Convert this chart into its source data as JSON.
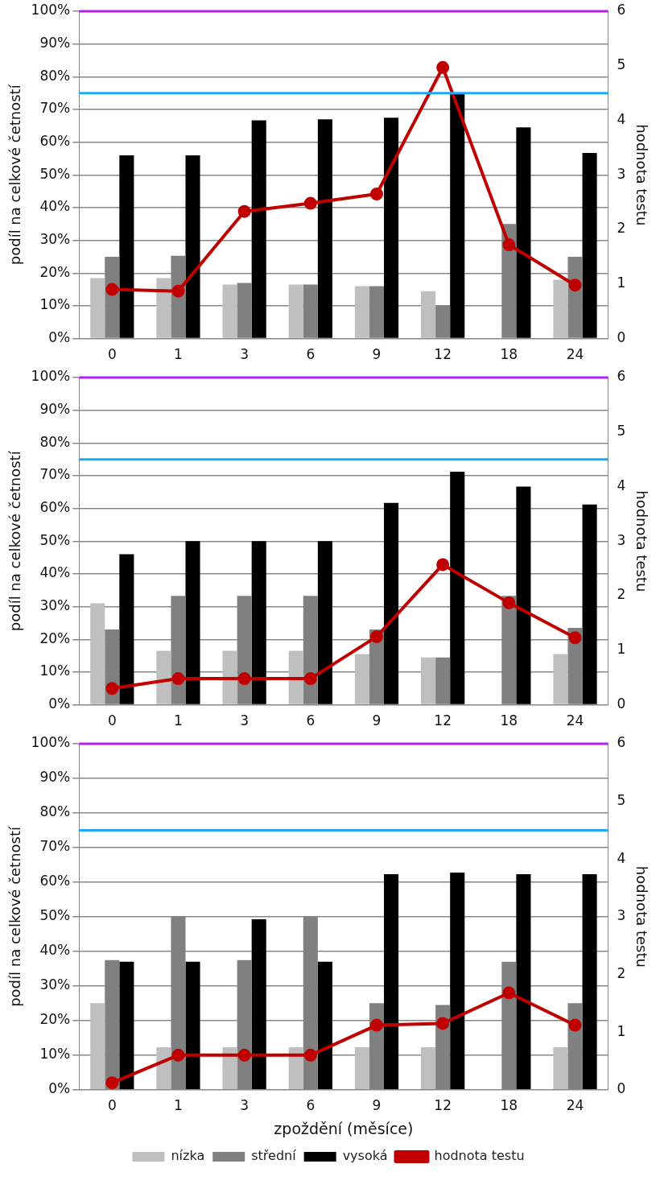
{
  "chart_data": [
    {
      "type": "bar",
      "ylabel": "podíl na celkové četností",
      "y2label": "hodnota testu",
      "categories": [
        "0",
        "1",
        "3",
        "6",
        "9",
        "12",
        "18",
        "24"
      ],
      "series": [
        {
          "color": "#bfbfbf",
          "values": [
            18.5,
            18.5,
            16.5,
            16.5,
            16,
            14.5,
            null,
            18
          ]
        },
        {
          "color": "#808080",
          "values": [
            25,
            25.3,
            17,
            16.5,
            16,
            10,
            35,
            25
          ]
        },
        {
          "color": "#000000",
          "values": [
            56,
            56,
            66.7,
            67,
            67.5,
            75,
            64.5,
            56.7
          ]
        },
        {
          "type": "line",
          "axis": "y2",
          "color": "#c00000",
          "marker": "circle",
          "values": [
            0.9,
            0.87,
            2.33,
            2.48,
            2.65,
            4.97,
            1.72,
            0.98
          ]
        }
      ],
      "ylim": [
        0,
        100
      ],
      "yticks": [
        {
          "value": 0,
          "label": "0%"
        },
        {
          "value": 10,
          "label": "10%"
        },
        {
          "value": 20,
          "label": "20%"
        },
        {
          "value": 30,
          "label": "30%"
        },
        {
          "value": 40,
          "label": "40%"
        },
        {
          "value": 50,
          "label": "50%"
        },
        {
          "value": 60,
          "label": "60%"
        },
        {
          "value": 70,
          "label": "70%"
        },
        {
          "value": 80,
          "label": "80%"
        },
        {
          "value": 90,
          "label": "90%"
        },
        {
          "value": 100,
          "label": "100%"
        }
      ],
      "y2lim": [
        0,
        6
      ],
      "y2ticks": [
        0,
        1,
        2,
        3,
        4,
        5,
        6
      ],
      "ref_lines": [
        {
          "axis": "y2",
          "value": 6,
          "color": "#b31ff0"
        },
        {
          "axis": "y2",
          "value": 4.5,
          "color": "#1ea7f5"
        }
      ],
      "grid": "y",
      "legend": false
    },
    {
      "type": "bar",
      "ylabel": "podíl na celkové četností",
      "y2label": "hodnota testu",
      "categories": [
        "0",
        "1",
        "3",
        "6",
        "9",
        "12",
        "18",
        "24"
      ],
      "series": [
        {
          "color": "#bfbfbf",
          "values": [
            31,
            16.5,
            16.5,
            16.5,
            15.5,
            14.5,
            null,
            15.5
          ]
        },
        {
          "color": "#808080",
          "values": [
            23,
            33.3,
            33.3,
            33.3,
            23,
            14.5,
            33.3,
            23.5
          ]
        },
        {
          "color": "#000000",
          "values": [
            46,
            50,
            50,
            50,
            61.7,
            71.2,
            66.7,
            61.2
          ]
        },
        {
          "type": "line",
          "axis": "y2",
          "color": "#c00000",
          "marker": "circle",
          "values": [
            0.3,
            0.48,
            0.48,
            0.48,
            1.25,
            2.57,
            1.87,
            1.23
          ]
        }
      ],
      "ylim": [
        0,
        100
      ],
      "yticks": [
        {
          "value": 0,
          "label": "0%"
        },
        {
          "value": 10,
          "label": "10%"
        },
        {
          "value": 20,
          "label": "20%"
        },
        {
          "value": 30,
          "label": "30%"
        },
        {
          "value": 40,
          "label": "40%"
        },
        {
          "value": 50,
          "label": "50%"
        },
        {
          "value": 60,
          "label": "60%"
        },
        {
          "value": 70,
          "label": "70%"
        },
        {
          "value": 80,
          "label": "80%"
        },
        {
          "value": 90,
          "label": "90%"
        },
        {
          "value": 100,
          "label": "100%"
        }
      ],
      "y2lim": [
        0,
        6
      ],
      "y2ticks": [
        0,
        1,
        2,
        3,
        4,
        5,
        6
      ],
      "ref_lines": [
        {
          "axis": "y2",
          "value": 6,
          "color": "#b31ff0"
        },
        {
          "axis": "y2",
          "value": 4.5,
          "color": "#1ea7f5"
        }
      ],
      "grid": "y",
      "legend": false
    },
    {
      "type": "bar",
      "xlabel": "zpoždění (měsíce)",
      "ylabel": "podíl na celkové četností",
      "y2label": "hodnota testu",
      "categories": [
        "0",
        "1",
        "3",
        "6",
        "9",
        "12",
        "18",
        "24"
      ],
      "series": [
        {
          "name": "nízka",
          "color": "#bfbfbf",
          "values": [
            25,
            12.3,
            12.3,
            12.3,
            12.3,
            12.3,
            null,
            12.3
          ]
        },
        {
          "name": "střední",
          "color": "#808080",
          "values": [
            37.5,
            50,
            37.5,
            50,
            25,
            24.5,
            37,
            25
          ]
        },
        {
          "name": "vysoká",
          "color": "#000000",
          "values": [
            37,
            37,
            49.3,
            37,
            62.3,
            62.8,
            62.3,
            62.3
          ]
        },
        {
          "name": "hodnota testu",
          "type": "line",
          "axis": "y2",
          "color": "#c00000",
          "marker": "circle",
          "values": [
            0.12,
            0.6,
            0.6,
            0.6,
            1.12,
            1.15,
            1.68,
            1.12
          ]
        }
      ],
      "ylim": [
        0,
        100
      ],
      "yticks": [
        {
          "value": 0,
          "label": "0%"
        },
        {
          "value": 10,
          "label": "10%"
        },
        {
          "value": 20,
          "label": "20%"
        },
        {
          "value": 30,
          "label": "30%"
        },
        {
          "value": 40,
          "label": "40%"
        },
        {
          "value": 50,
          "label": "50%"
        },
        {
          "value": 60,
          "label": "60%"
        },
        {
          "value": 70,
          "label": "70%"
        },
        {
          "value": 80,
          "label": "80%"
        },
        {
          "value": 90,
          "label": "90%"
        },
        {
          "value": 100,
          "label": "100%"
        }
      ],
      "y2lim": [
        0,
        6
      ],
      "y2ticks": [
        0,
        1,
        2,
        3,
        4,
        5,
        6
      ],
      "ref_lines": [
        {
          "axis": "y2",
          "value": 6,
          "color": "#b31ff0"
        },
        {
          "axis": "y2",
          "value": 4.5,
          "color": "#1ea7f5"
        }
      ],
      "grid": "y",
      "legend": "bottom"
    }
  ]
}
